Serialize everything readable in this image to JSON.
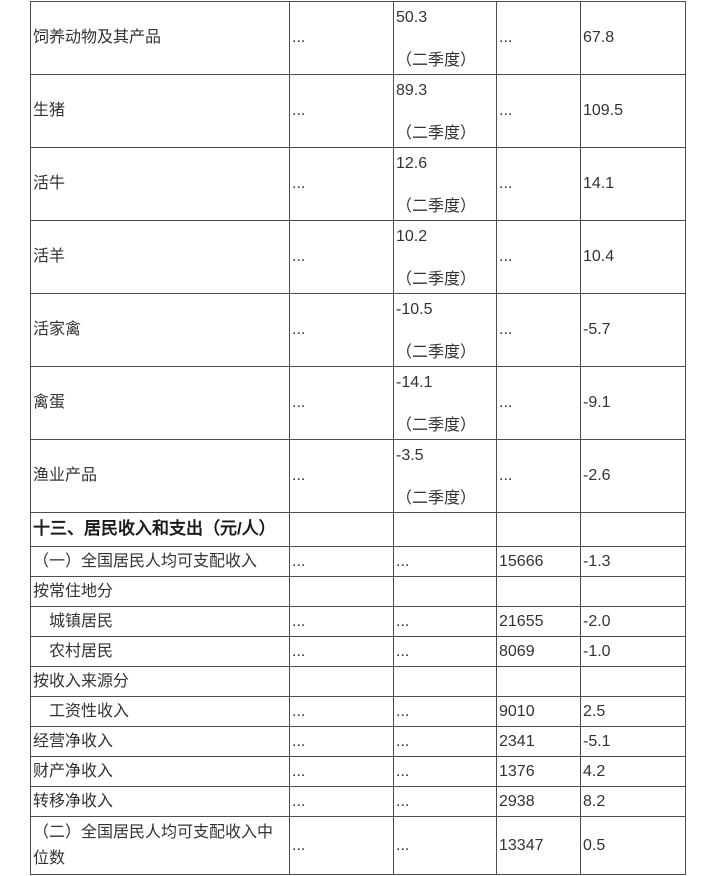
{
  "page": {
    "background": "#ffffff"
  },
  "colors": {
    "border": "#4d4d4d",
    "text": "#333333",
    "section_text": "#1a1a1a"
  },
  "table": {
    "rows": [
      {
        "type": "quarter",
        "label": "饲养动物及其产品",
        "c2": "...",
        "value": "50.3",
        "note": "（二季度）",
        "c4": "...",
        "c5": "67.8"
      },
      {
        "type": "quarter",
        "label": "生猪",
        "c2": "...",
        "value": "89.3",
        "note": "（二季度）",
        "c4": "...",
        "c5": "109.5"
      },
      {
        "type": "quarter",
        "label": "活牛",
        "c2": "...",
        "value": "12.6",
        "note": "（二季度）",
        "c4": "...",
        "c5": "14.1"
      },
      {
        "type": "quarter",
        "label": "活羊",
        "c2": "...",
        "value": "10.2",
        "note": "（二季度）",
        "c4": "...",
        "c5": "10.4"
      },
      {
        "type": "quarter",
        "label": "活家禽",
        "c2": "...",
        "value": "-10.5",
        "note": "（二季度）",
        "c4": "...",
        "c5": "-5.7"
      },
      {
        "type": "quarter",
        "label": "禽蛋",
        "c2": "...",
        "value": "-14.1",
        "note": "（二季度）",
        "c4": "...",
        "c5": "-9.1"
      },
      {
        "type": "quarter",
        "label": "渔业产品",
        "c2": "...",
        "value": "-3.5",
        "note": "（二季度）",
        "c4": "...",
        "c5": "-2.6"
      },
      {
        "type": "section",
        "label": "十三、居民收入和支出（元/人）"
      },
      {
        "type": "data",
        "label": "（一）全国居民人均可支配收入",
        "c2": "...",
        "c3": "...",
        "c4": "15666",
        "c5": "-1.3"
      },
      {
        "type": "data",
        "label": "按常住地分",
        "c2": "",
        "c3": "",
        "c4": "",
        "c5": ""
      },
      {
        "type": "data",
        "indent": true,
        "label": "城镇居民",
        "c2": "...",
        "c3": "...",
        "c4": "21655",
        "c5": "-2.0"
      },
      {
        "type": "data",
        "indent": true,
        "label": "农村居民",
        "c2": "...",
        "c3": "...",
        "c4": "8069",
        "c5": "-1.0"
      },
      {
        "type": "data",
        "label": "按收入来源分",
        "c2": "",
        "c3": "",
        "c4": "",
        "c5": ""
      },
      {
        "type": "data",
        "indent": true,
        "label": "工资性收入",
        "c2": "...",
        "c3": "...",
        "c4": "9010",
        "c5": "2.5"
      },
      {
        "type": "data",
        "label": "经营净收入",
        "c2": "...",
        "c3": "...",
        "c4": "2341",
        "c5": "-5.1"
      },
      {
        "type": "data",
        "label": "财产净收入",
        "c2": "...",
        "c3": "...",
        "c4": "1376",
        "c5": "4.2"
      },
      {
        "type": "data",
        "label": "转移净收入",
        "c2": "...",
        "c3": "...",
        "c4": "2938",
        "c5": "8.2"
      },
      {
        "type": "data",
        "last": true,
        "label": "（二）全国居民人均可支配收入中位数",
        "c2": "...",
        "c3": "...",
        "c4": "13347",
        "c5": "0.5"
      }
    ]
  }
}
